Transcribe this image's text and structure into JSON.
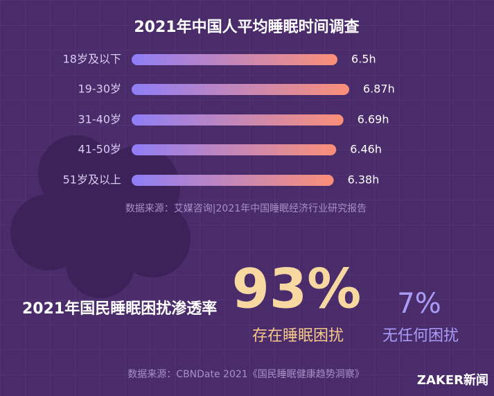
{
  "chart_data": {
    "type": "bar",
    "orientation": "horizontal",
    "title": "2021年中国人平均睡眠时间调查",
    "categories": [
      "18岁及以下",
      "19-30岁",
      "31-40岁",
      "41-50岁",
      "51岁及以上"
    ],
    "values": [
      6.5,
      6.87,
      6.69,
      6.46,
      6.38
    ],
    "value_labels": [
      "6.5h",
      "6.87h",
      "6.69h",
      "6.46h",
      "6.38h"
    ],
    "colors": [
      "#8f7ef7",
      "#fb8f78"
    ],
    "source": "数据来源：艾媒咨询|2021年中国睡眠经济行业研究报告"
  },
  "stats": {
    "title": "2021年国民睡眠困扰渗透率",
    "items": [
      {
        "value": "93%",
        "caption": "存在睡眠困扰"
      },
      {
        "value": "7%",
        "caption": "无任何困扰"
      }
    ],
    "source": "数据来源：CBNDate 2021《国民睡眠健康趋势洞察》"
  },
  "watermark": "ZAKER新闻"
}
